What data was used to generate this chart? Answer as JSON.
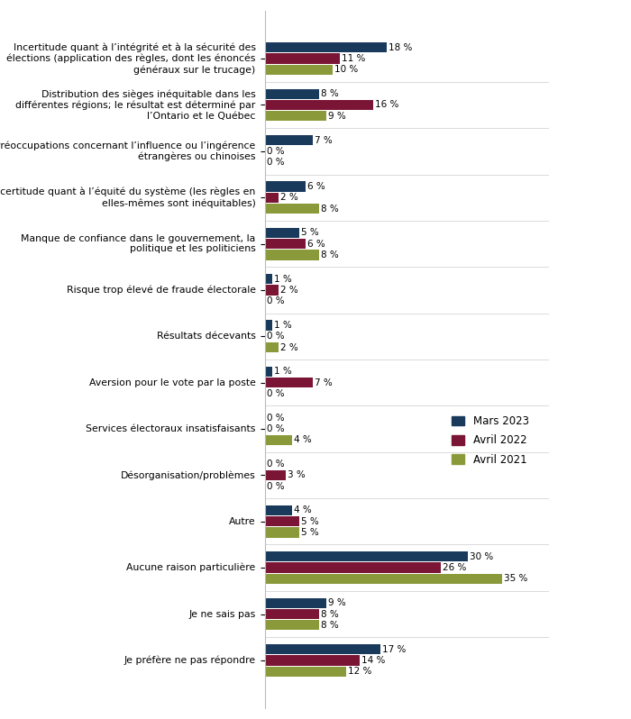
{
  "categories": [
    "Incertitude quant à l’intégrité et à la sécurité des\nélections (application des règles, dont les énoncés\ngénéraux sur le trucage)",
    "Distribution des sièges inéquitable dans les\ndifférentes régions; le résultat est déterminé par\nl’Ontario et le Québec",
    "Préoccupations concernant l’influence ou l’ingérence\nétrangères ou chinoises",
    "Incertitude quant à l’équité du système (les règles en\nelles-mêmes sont inéquitables)",
    "Manque de confiance dans le gouvernement, la\npolitique et les politiciens",
    "Risque trop élevé de fraude électorale",
    "Résultats décevants",
    "Aversion pour le vote par la poste",
    "Services électoraux insatisfaisants",
    "Désorganisation/problèmes",
    "Autre",
    "Aucune raison particulière",
    "Je ne sais pas",
    "Je préfère ne pas répondre"
  ],
  "mars2023": [
    18,
    8,
    7,
    6,
    5,
    1,
    1,
    1,
    0,
    0,
    4,
    30,
    9,
    17
  ],
  "avril2022": [
    11,
    16,
    0,
    2,
    6,
    2,
    0,
    7,
    0,
    3,
    5,
    26,
    8,
    14
  ],
  "avril2021": [
    10,
    9,
    0,
    8,
    8,
    0,
    2,
    0,
    4,
    0,
    5,
    35,
    8,
    12
  ],
  "color_mars2023": "#1a3a5c",
  "color_avril2022": "#7b1535",
  "color_avril2021": "#8a9a3a",
  "legend_labels": [
    "Mars 2023",
    "Avril 2022",
    "Avril 2021"
  ],
  "xlim": [
    0,
    42
  ]
}
